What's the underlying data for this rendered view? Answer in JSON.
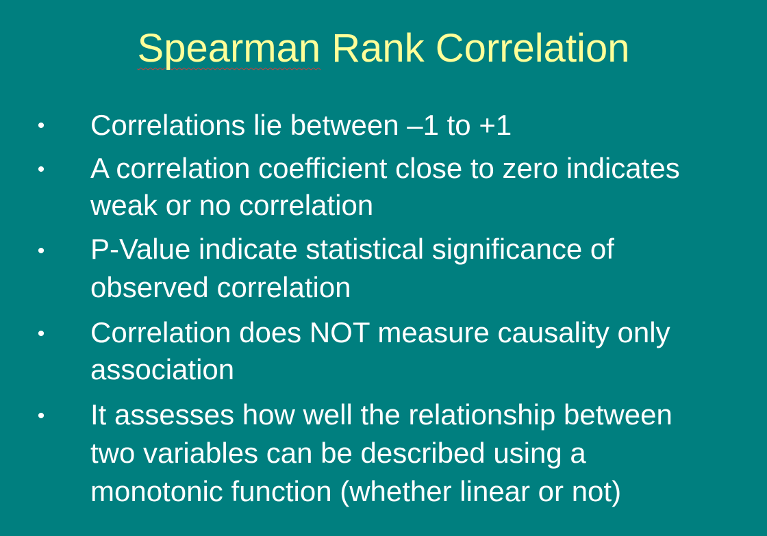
{
  "slide": {
    "title_word1": "Spearman",
    "title_rest": " Rank Correlation",
    "bullets": [
      {
        "bullet": "•",
        "lines": [
          "Correlations lie between –1 to +1"
        ]
      },
      {
        "bullet": "•",
        "lines": [
          "A correlation coefficient close to zero indicates",
          "weak or no correlation"
        ]
      },
      {
        "bullet": "•",
        "lines": [
          "P-Value indicate statistical significance of",
          "observed correlation"
        ]
      },
      {
        "bullet": "•",
        "lines": [
          "Correlation does NOT measure causality only",
          "association"
        ]
      },
      {
        "bullet": "•",
        "lines": [
          "It assesses how well the relationship between",
          "two variables can be described using a",
          "monotonic function (whether linear or not)"
        ]
      }
    ]
  },
  "colors": {
    "background": "#007f7f",
    "title": "#ffff99",
    "body_text": "#ffffff"
  }
}
